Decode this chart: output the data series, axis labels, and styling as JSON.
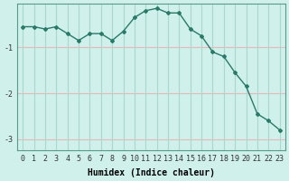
{
  "x": [
    0,
    1,
    2,
    3,
    4,
    5,
    6,
    7,
    8,
    9,
    10,
    11,
    12,
    13,
    14,
    15,
    16,
    17,
    18,
    19,
    20,
    21,
    22,
    23
  ],
  "y": [
    -0.55,
    -0.55,
    -0.6,
    -0.55,
    -0.7,
    -0.85,
    -0.7,
    -0.7,
    -0.85,
    -0.65,
    -0.35,
    -0.2,
    -0.15,
    -0.25,
    -0.25,
    -0.6,
    -0.75,
    -1.1,
    -1.2,
    -1.55,
    -1.85,
    -2.45,
    -2.6,
    -2.8
  ],
  "line_color": "#2a7a6a",
  "marker": "D",
  "marker_size": 2.0,
  "bg_color": "#cff0eb",
  "grid_color_h": "#e8b8b8",
  "grid_color_v": "#aad8d0",
  "xlabel": "Humidex (Indice chaleur)",
  "xlim": [
    -0.5,
    23.5
  ],
  "ylim": [
    -3.25,
    -0.05
  ],
  "yticks": [
    -1,
    -2,
    -3
  ],
  "xticks": [
    0,
    1,
    2,
    3,
    4,
    5,
    6,
    7,
    8,
    9,
    10,
    11,
    12,
    13,
    14,
    15,
    16,
    17,
    18,
    19,
    20,
    21,
    22,
    23
  ],
  "xlabel_fontsize": 7.0,
  "tick_fontsize": 6.0,
  "spine_color": "#5a9a8a"
}
